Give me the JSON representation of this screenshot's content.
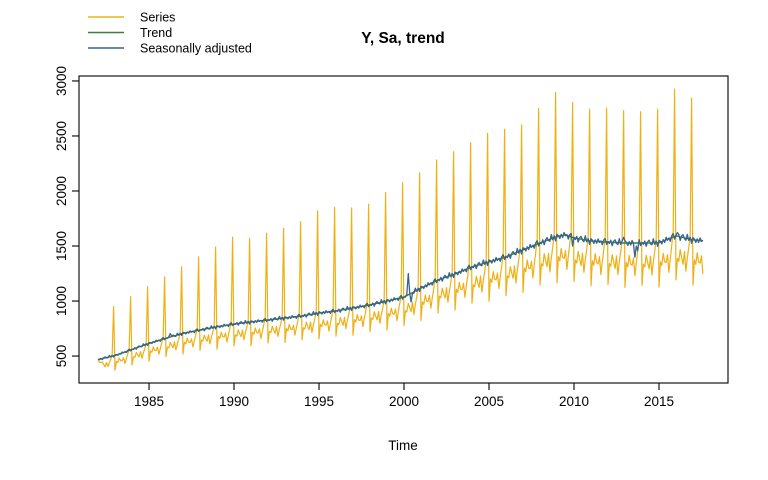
{
  "title": "Y, Sa, trend",
  "x_axis_label": "Time",
  "legend": [
    {
      "label": "Series",
      "color": "#EFB014"
    },
    {
      "label": "Trend",
      "color": "#3F7D3F"
    },
    {
      "label": "Seasonally adjusted",
      "color": "#36648B"
    }
  ],
  "chart_data": {
    "type": "line",
    "title": "Y, Sa, trend",
    "xlabel": "Time",
    "ylabel": "",
    "grid": false,
    "legend_position": "top-left",
    "x_ticks": [
      1985,
      1990,
      1995,
      2000,
      2005,
      2010,
      2015
    ],
    "y_ticks": [
      500,
      1000,
      1500,
      2000,
      2500,
      3000
    ],
    "xlim": [
      1980.88,
      2019.06
    ],
    "ylim": [
      255,
      3045
    ],
    "frequency": "monthly",
    "time_range": [
      1982.0,
      2017.5833
    ],
    "series_colors": {
      "series": "#EFB014",
      "trend": "#3F7D3F",
      "seasonally_adjusted": "#36648B"
    },
    "trend_t": [
      1982,
      1983,
      1984,
      1985,
      1986,
      1987,
      1988,
      1989,
      1990,
      1991,
      1992,
      1993,
      1994,
      1995,
      1996,
      1997,
      1998,
      1999,
      2000,
      2001,
      2002,
      2003,
      2004,
      2005,
      2006,
      2007,
      2008,
      2009,
      2009.5,
      2010,
      2011,
      2012,
      2013,
      2014,
      2015,
      2016,
      2017,
      2017.5833
    ],
    "trend_v": [
      468,
      505,
      560,
      615,
      662,
      706,
      737,
      766,
      791,
      810,
      828,
      846,
      865,
      891,
      910,
      937,
      965,
      1000,
      1036,
      1118,
      1191,
      1246,
      1310,
      1356,
      1401,
      1465,
      1528,
      1585,
      1602,
      1574,
      1546,
      1536,
      1527,
      1527,
      1530,
      1592,
      1556,
      1548
    ],
    "dec_peak_years_start": 1982,
    "dec_peaks": [
      950,
      1040,
      1130,
      1220,
      1310,
      1400,
      1490,
      1580,
      1570,
      1615,
      1660,
      1720,
      1820,
      1850,
      1845,
      1880,
      1985,
      2076,
      2166,
      2282,
      2357,
      2439,
      2524,
      2561,
      2600,
      2750,
      2894,
      2803,
      2743,
      2752,
      2730,
      2721,
      2743,
      2925,
      2843
    ],
    "seasonal_factors": [
      0.745,
      0.88,
      0.85,
      0.93,
      0.88,
      0.855,
      0.915,
      0.8,
      0.895,
      0.945,
      1.03,
      1.9
    ],
    "first_year_factors": [
      1.0,
      0.95,
      0.92,
      0.94,
      0.88,
      0.84,
      0.9,
      0.82,
      0.9,
      0.95,
      1.04,
      1.9
    ],
    "noise_pct": [
      0.8,
      -1.2,
      1.5,
      -0.6,
      0.4,
      -1.8,
      1.0,
      2.0,
      -1.5,
      0.3,
      -0.8,
      1.2,
      -2.0,
      0.7,
      1.6,
      -0.5,
      -1.2,
      2.4,
      -0.9,
      1.1,
      -2.2,
      1.3,
      0.5,
      -1.4
    ],
    "series_noise_scale": 0.6,
    "sa_anomalies": [
      {
        "t": 2000.25,
        "d": 215
      },
      {
        "t": 2000.4167,
        "d": -95
      },
      {
        "t": 2013.5833,
        "d": -135
      },
      {
        "t": 2013.75,
        "d": -85
      },
      {
        "t": 2012.9167,
        "d": 85
      },
      {
        "t": 1986.25,
        "d": 45
      },
      {
        "t": 2016.0833,
        "d": 45
      },
      {
        "t": 2009.9167,
        "d": -55
      }
    ]
  }
}
